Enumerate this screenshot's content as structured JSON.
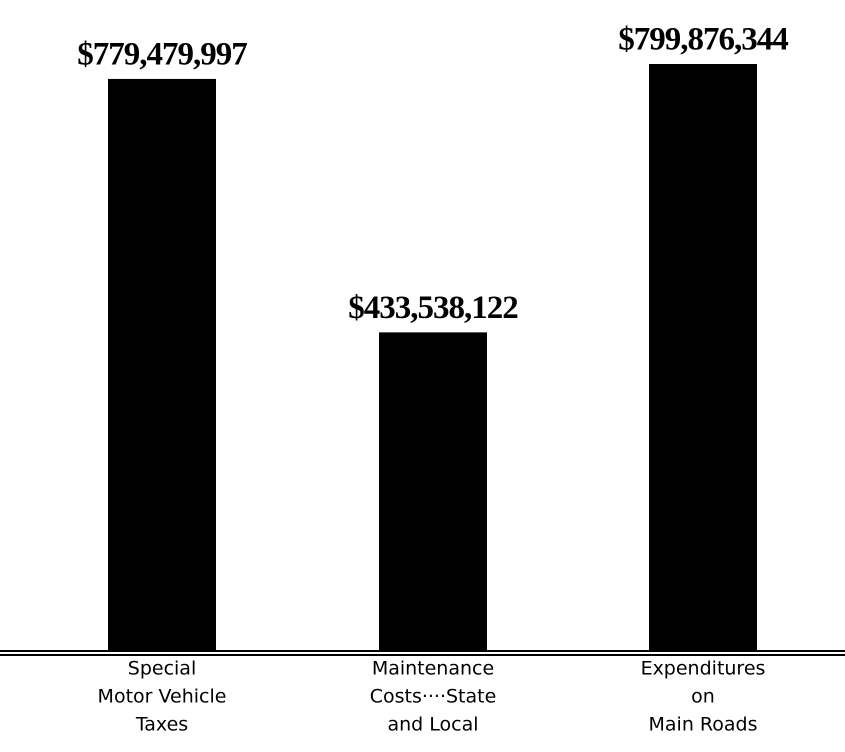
{
  "chart_data": {
    "type": "bar",
    "categories": [
      [
        "Special",
        "Motor Vehicle",
        "Taxes"
      ],
      [
        "Maintenance",
        "Costs····State",
        "and Local"
      ],
      [
        "Expenditures",
        "on",
        "Main Roads"
      ]
    ],
    "values": [
      779479997,
      433538122,
      799876344
    ],
    "value_labels": [
      "$779,479,997",
      "$433,538,122",
      "$799,876,344"
    ],
    "color": "#000000"
  }
}
